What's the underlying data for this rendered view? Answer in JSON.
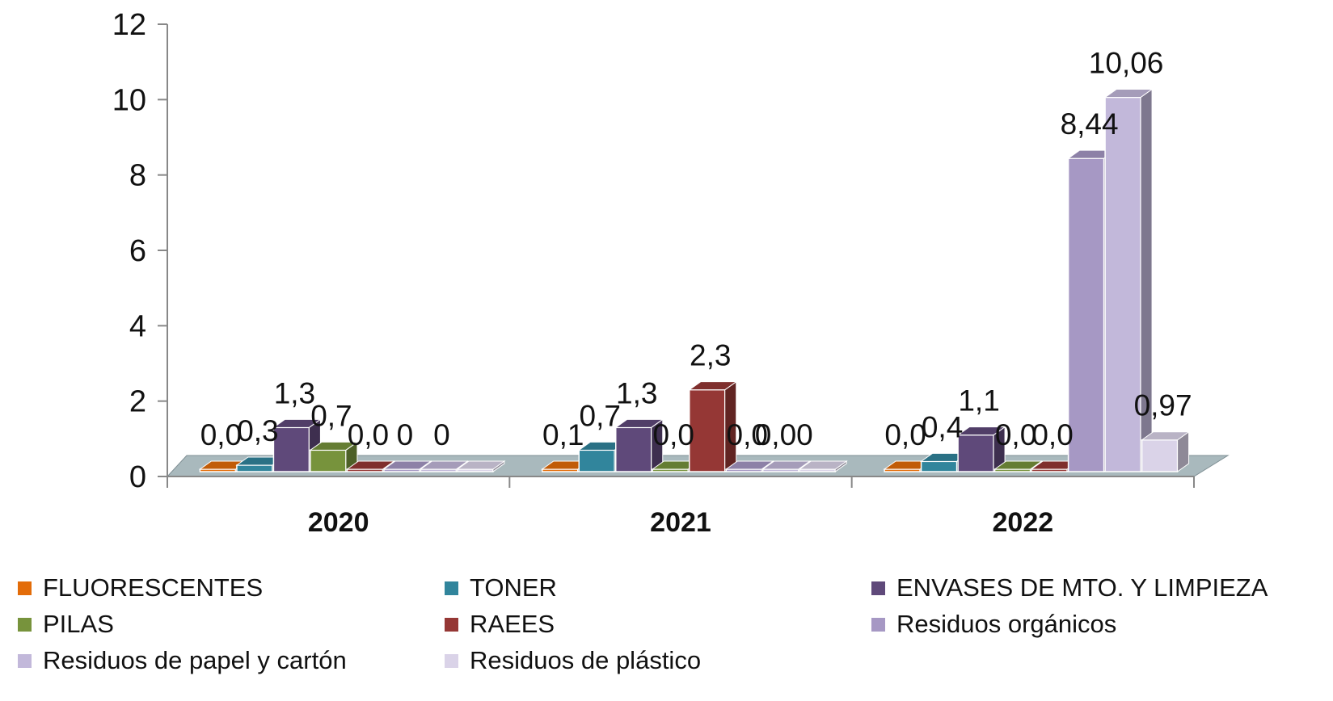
{
  "chart_data": {
    "type": "bar",
    "categories": [
      "2020",
      "2021",
      "2022"
    ],
    "ylim": [
      0,
      12
    ],
    "yticks": [
      "0",
      "2",
      "4",
      "6",
      "8",
      "10",
      "12"
    ],
    "series": [
      {
        "name": "FLUORESCENTES",
        "color": "#E36C09",
        "values": [
          0.02,
          0.1,
          0.02
        ],
        "labels": [
          "0,0",
          "0,1",
          "0,0"
        ]
      },
      {
        "name": "TONER",
        "color": "#31859C",
        "values": [
          0.3,
          0.7,
          0.4
        ],
        "labels": [
          "0,3",
          "0,7",
          "0,4"
        ]
      },
      {
        "name": "ENVASES DE MTO. Y LIMPIEZA",
        "color": "#5F497A",
        "values": [
          1.3,
          1.3,
          1.1
        ],
        "labels": [
          "1,3",
          "1,3",
          "1,1"
        ]
      },
      {
        "name": "PILAS",
        "color": "#77933C",
        "values": [
          0.7,
          0.02,
          0.02
        ],
        "labels": [
          "0,7",
          "0,0",
          "0,0"
        ]
      },
      {
        "name": "RAEES",
        "color": "#953735",
        "values": [
          0.02,
          2.3,
          0.02
        ],
        "labels": [
          "0,0",
          "2,3",
          "0,0"
        ]
      },
      {
        "name": "Residuos orgánicos",
        "color": "#A698C4",
        "values": [
          0,
          0,
          8.44
        ],
        "labels": [
          "0",
          "0,0",
          "8,44"
        ]
      },
      {
        "name": "Residuos de papel y cartón",
        "color": "#C2B8DA",
        "values": [
          0,
          0,
          10.06
        ],
        "labels": [
          "0",
          "0,00",
          "10,06"
        ]
      },
      {
        "name": "Residuos de plástico",
        "color": "#DAD3E8",
        "values": [
          0,
          0,
          0.97
        ],
        "labels": [
          "",
          "",
          "0,97"
        ]
      }
    ]
  }
}
